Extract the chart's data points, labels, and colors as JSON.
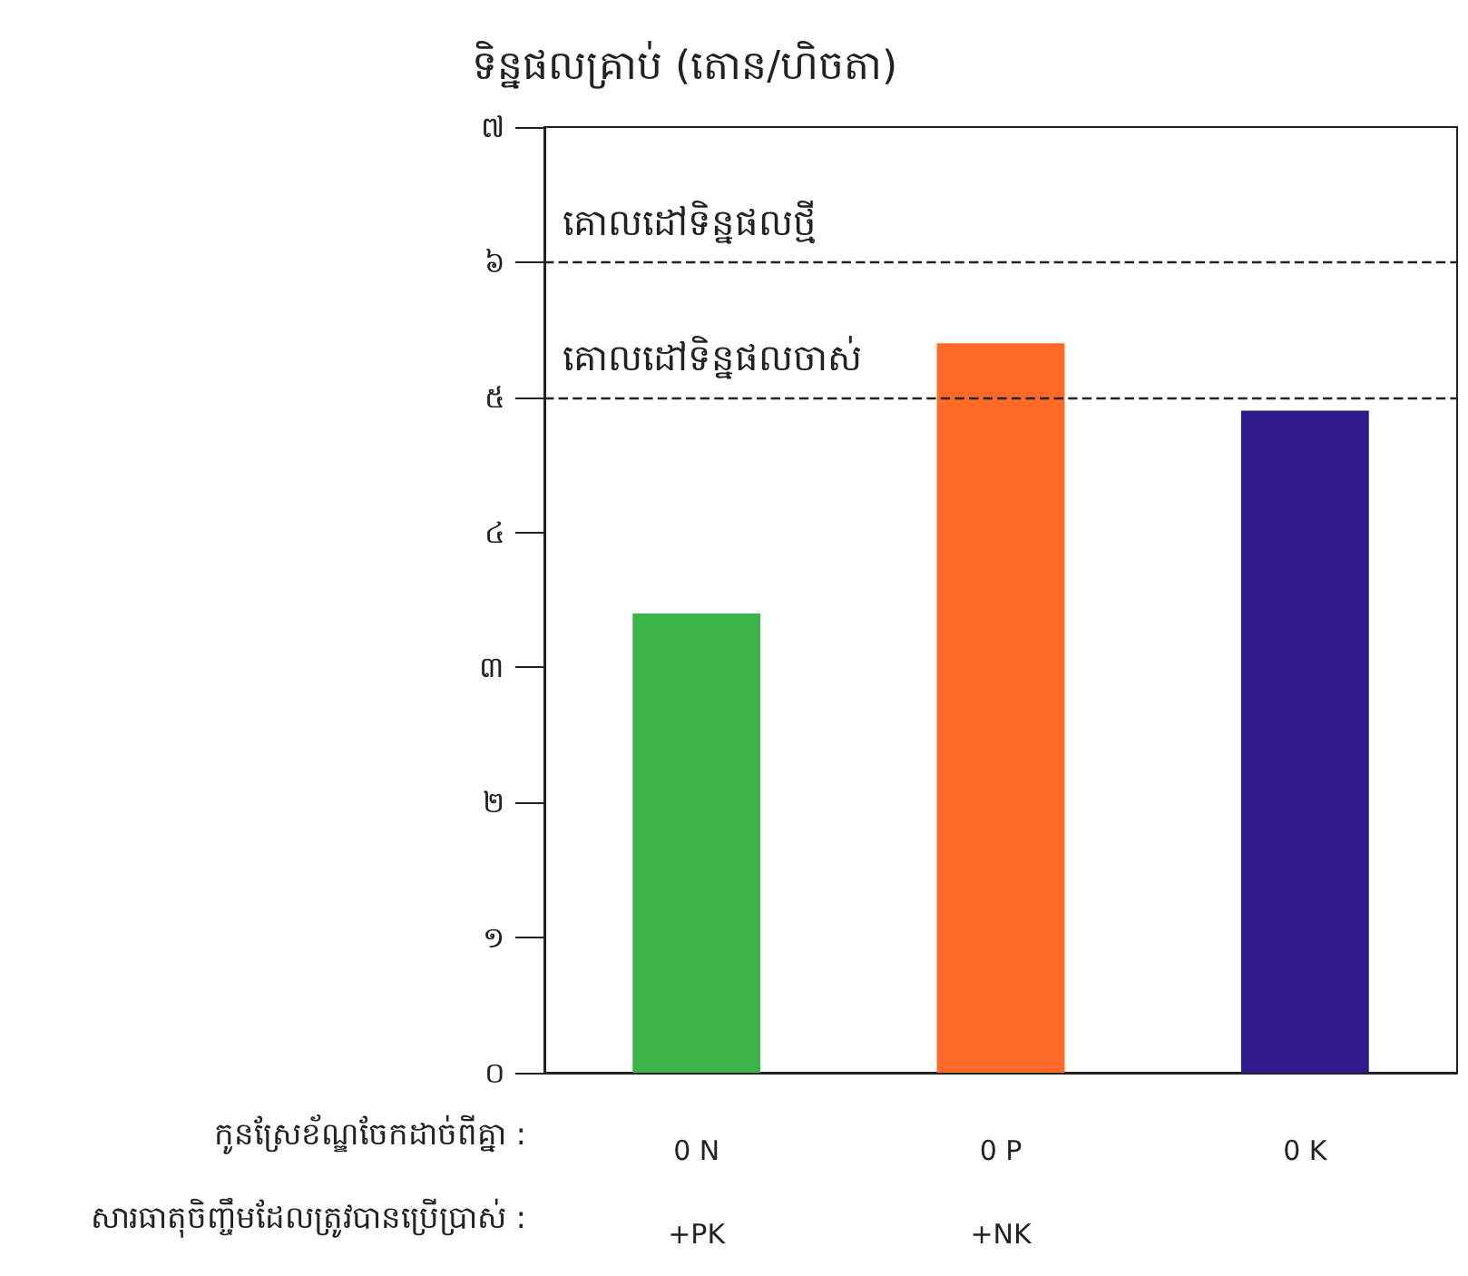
{
  "chart_data": {
    "type": "bar",
    "ylabel": "ទិន្នផលគ្រាប់ (តោន/ហិចតា)",
    "categories": [
      "0 N\n+PK",
      "0 P\n+NK",
      "0 K"
    ],
    "values": [
      3.4,
      5.4,
      4.9
    ],
    "colors": [
      "#3cb44a",
      "#ff6a28",
      "#2e1a8a"
    ],
    "ylim": [
      0,
      7
    ],
    "yticks": [
      {
        "value": 0,
        "label": "០"
      },
      {
        "value": 1,
        "label": "១"
      },
      {
        "value": 2,
        "label": "២"
      },
      {
        "value": 3,
        "label": "៣"
      },
      {
        "value": 4,
        "label": "៤"
      },
      {
        "value": 5,
        "label": "៥"
      },
      {
        "value": 6,
        "label": "៦"
      },
      {
        "value": 7,
        "label": "៧"
      }
    ],
    "ref_lines": [
      {
        "axis": "y",
        "value": 6,
        "label": "គោលដៅទិន្នផលថ្មី",
        "line_style": "dashed"
      },
      {
        "axis": "y",
        "value": 5,
        "label": "គោលដៅទិន្នផលចាស់",
        "line_style": "dashed"
      }
    ],
    "annotations": [
      "កូនស្រែខ័ណ្ឌចែកដាច់ពីគ្នា :",
      "សារធាតុចិញ្ចឹមដែលត្រូវបានប្រើប្រាស់ :"
    ],
    "grid": false
  }
}
